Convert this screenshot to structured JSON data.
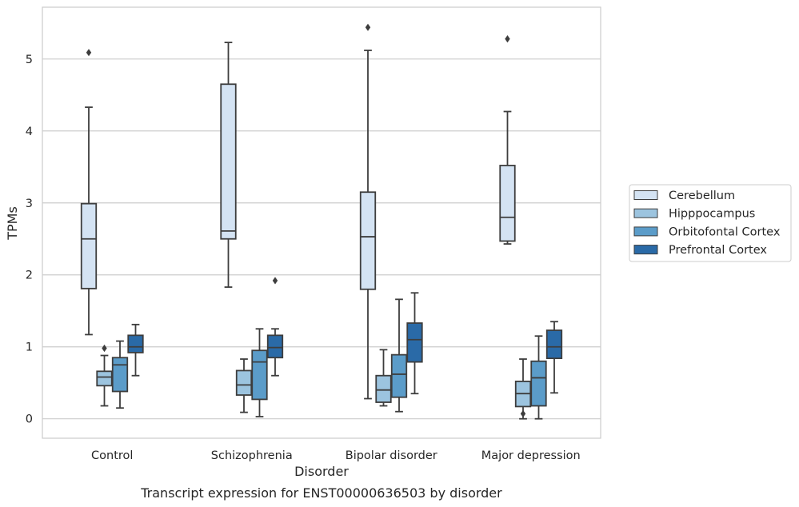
{
  "chart_data": {
    "type": "box",
    "title": "Transcript expression for ENST00000636503 by disorder",
    "xlabel": "Disorder",
    "ylabel": "TPMs",
    "ylim": [
      -0.27,
      5.72
    ],
    "yticks": [
      0,
      1,
      2,
      3,
      4,
      5
    ],
    "grid": "horizontal",
    "legend_position": "right",
    "categories": [
      "Control",
      "Schizophrenia",
      "Bipolar disorder",
      "Major depression"
    ],
    "series": [
      {
        "name": "Cerebellum",
        "color": "#d4e3f3",
        "boxes": [
          {
            "whislo": 1.17,
            "q1": 1.81,
            "med": 2.5,
            "q3": 2.99,
            "whishi": 4.33,
            "fliers": [
              5.09
            ]
          },
          {
            "whislo": 1.83,
            "q1": 2.5,
            "med": 2.61,
            "q3": 4.65,
            "whishi": 5.23,
            "fliers": []
          },
          {
            "whislo": 0.28,
            "q1": 1.8,
            "med": 2.53,
            "q3": 3.15,
            "whishi": 5.12,
            "fliers": [
              5.44
            ]
          },
          {
            "whislo": 2.43,
            "q1": 2.47,
            "med": 2.8,
            "q3": 3.52,
            "whishi": 4.27,
            "fliers": [
              5.28
            ]
          }
        ]
      },
      {
        "name": "Hipppocampus",
        "color": "#9cc4df",
        "boxes": [
          {
            "whislo": 0.18,
            "q1": 0.46,
            "med": 0.58,
            "q3": 0.66,
            "whishi": 0.88,
            "fliers": [
              0.98
            ]
          },
          {
            "whislo": 0.09,
            "q1": 0.33,
            "med": 0.47,
            "q3": 0.67,
            "whishi": 0.83,
            "fliers": []
          },
          {
            "whislo": 0.18,
            "q1": 0.23,
            "med": 0.4,
            "q3": 0.6,
            "whishi": 0.96,
            "fliers": []
          },
          {
            "whislo": 0.0,
            "q1": 0.17,
            "med": 0.35,
            "q3": 0.52,
            "whishi": 0.83,
            "fliers": [
              0.07
            ]
          }
        ]
      },
      {
        "name": "Orbitofontal Cortex",
        "color": "#5b9cc9",
        "boxes": [
          {
            "whislo": 0.15,
            "q1": 0.38,
            "med": 0.75,
            "q3": 0.85,
            "whishi": 1.08,
            "fliers": []
          },
          {
            "whislo": 0.03,
            "q1": 0.27,
            "med": 0.79,
            "q3": 0.95,
            "whishi": 1.25,
            "fliers": []
          },
          {
            "whislo": 0.1,
            "q1": 0.3,
            "med": 0.62,
            "q3": 0.89,
            "whishi": 1.66,
            "fliers": []
          },
          {
            "whislo": 0.0,
            "q1": 0.18,
            "med": 0.57,
            "q3": 0.8,
            "whishi": 1.15,
            "fliers": []
          }
        ]
      },
      {
        "name": "Prefrontal Cortex",
        "color": "#2a6aa7",
        "boxes": [
          {
            "whislo": 0.6,
            "q1": 0.92,
            "med": 1.0,
            "q3": 1.16,
            "whishi": 1.31,
            "fliers": []
          },
          {
            "whislo": 0.6,
            "q1": 0.85,
            "med": 0.99,
            "q3": 1.16,
            "whishi": 1.25,
            "fliers": [
              1.92
            ]
          },
          {
            "whislo": 0.35,
            "q1": 0.79,
            "med": 1.1,
            "q3": 1.33,
            "whishi": 1.75,
            "fliers": []
          },
          {
            "whislo": 0.36,
            "q1": 0.84,
            "med": 1.0,
            "q3": 1.23,
            "whishi": 1.35,
            "fliers": []
          }
        ]
      }
    ]
  }
}
